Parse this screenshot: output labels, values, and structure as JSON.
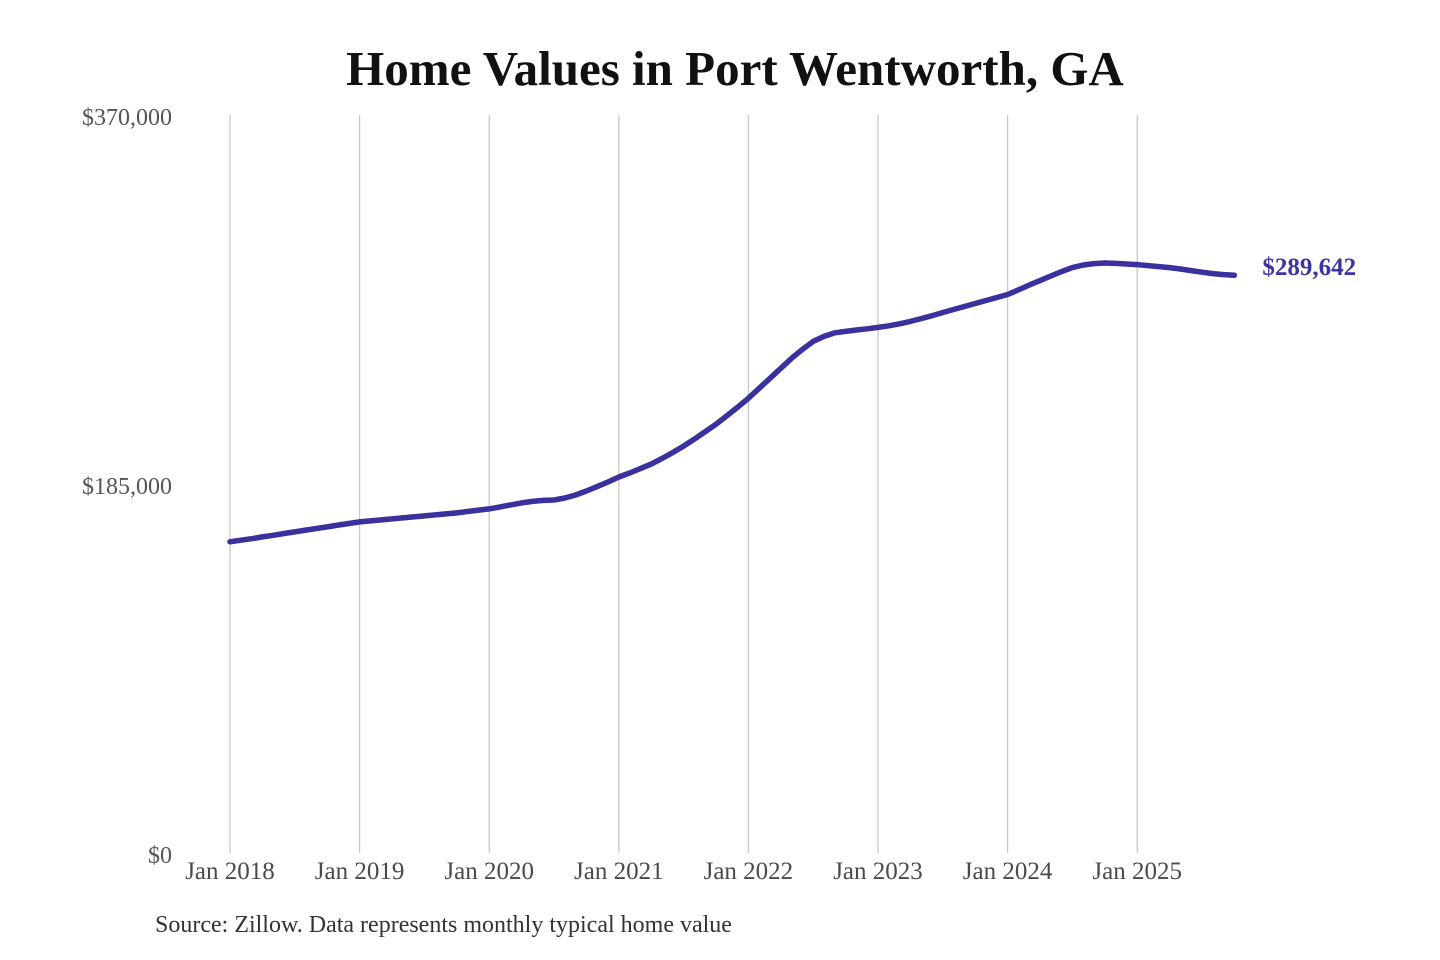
{
  "chart_data": {
    "type": "line",
    "title": "Home Values in Port Wentworth, GA",
    "xlabel": "",
    "ylabel": "",
    "ylim": [
      0,
      370000
    ],
    "grid": "vertical-only",
    "legend": "none",
    "y_ticks": [
      {
        "label": "$370,000",
        "value": 370000
      },
      {
        "label": "$185,000",
        "value": 185000
      },
      {
        "label": "$0",
        "value": 0
      }
    ],
    "x_ticks": [
      {
        "label": "Jan 2018",
        "month_index": 0
      },
      {
        "label": "Jan 2019",
        "month_index": 12
      },
      {
        "label": "Jan 2020",
        "month_index": 24
      },
      {
        "label": "Jan 2021",
        "month_index": 36
      },
      {
        "label": "Jan 2022",
        "month_index": 48
      },
      {
        "label": "Jan 2023",
        "month_index": 60
      },
      {
        "label": "Jan 2024",
        "month_index": 72
      },
      {
        "label": "Jan 2025",
        "month_index": 84
      }
    ],
    "series": [
      {
        "name": "Monthly typical home value",
        "start": "Jan 2018",
        "end": "Oct 2025",
        "frequency": "monthly",
        "values": [
          156000,
          156800,
          157600,
          158500,
          159300,
          160200,
          161000,
          161900,
          162700,
          163500,
          164400,
          165200,
          166000,
          166500,
          167000,
          167500,
          168000,
          168500,
          169000,
          169500,
          170000,
          170500,
          171200,
          171900,
          172500,
          173500,
          174500,
          175500,
          176300,
          176800,
          177000,
          178000,
          179500,
          181500,
          183700,
          186000,
          188500,
          190500,
          192700,
          195000,
          197800,
          200800,
          204000,
          207500,
          211200,
          215000,
          219200,
          223500,
          228000,
          233000,
          238000,
          243000,
          248000,
          252500,
          256500,
          259000,
          260800,
          261500,
          262200,
          262800,
          263500,
          264300,
          265300,
          266500,
          267900,
          269400,
          271000,
          272500,
          274000,
          275500,
          277000,
          278500,
          280000,
          282300,
          284700,
          287000,
          289300,
          291500,
          293500,
          294800,
          295500,
          295800,
          295600,
          295300,
          295000,
          294500,
          294000,
          293500,
          292800,
          292000,
          291200,
          290500,
          290000,
          289642
        ]
      }
    ],
    "end_label": "$289,642",
    "end_value": 289642,
    "source": "Source: Zillow. Data represents monthly typical home value",
    "line_color": "#39319e",
    "grid_color": "#c9c9c9",
    "tick_color": "#555555"
  }
}
